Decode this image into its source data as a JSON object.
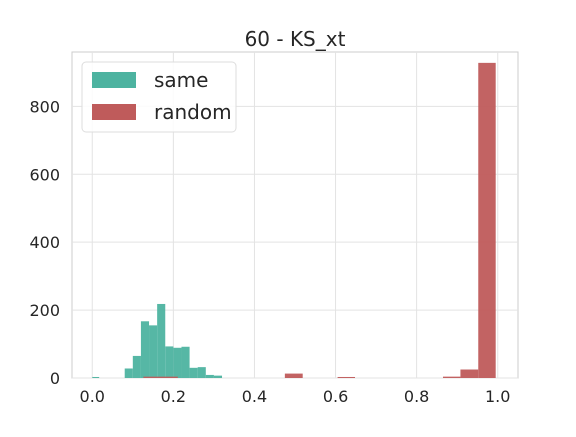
{
  "chart_data": {
    "type": "bar",
    "title": "60 - KS_xt",
    "xlabel": "",
    "ylabel": "",
    "xlim": [
      -0.05,
      1.05
    ],
    "ylim": [
      0,
      960
    ],
    "xticks": [
      0.0,
      0.2,
      0.4,
      0.6,
      0.8,
      1.0
    ],
    "xtick_labels": [
      "0.0",
      "0.2",
      "0.4",
      "0.6",
      "0.8",
      "1.0"
    ],
    "yticks": [
      0,
      200,
      400,
      600,
      800
    ],
    "ytick_labels": [
      "0",
      "200",
      "400",
      "600",
      "800"
    ],
    "grid": true,
    "legend_position": "top-left",
    "series": [
      {
        "name": "same",
        "color": "#4db3a0",
        "bins": [
          {
            "x0": 0.0,
            "x1": 0.017,
            "count": 3
          },
          {
            "x0": 0.08,
            "x1": 0.1,
            "count": 28
          },
          {
            "x0": 0.1,
            "x1": 0.12,
            "count": 65
          },
          {
            "x0": 0.12,
            "x1": 0.14,
            "count": 167
          },
          {
            "x0": 0.14,
            "x1": 0.16,
            "count": 155
          },
          {
            "x0": 0.16,
            "x1": 0.18,
            "count": 218
          },
          {
            "x0": 0.18,
            "x1": 0.2,
            "count": 93
          },
          {
            "x0": 0.2,
            "x1": 0.22,
            "count": 89
          },
          {
            "x0": 0.22,
            "x1": 0.24,
            "count": 92
          },
          {
            "x0": 0.24,
            "x1": 0.26,
            "count": 30
          },
          {
            "x0": 0.26,
            "x1": 0.28,
            "count": 32
          },
          {
            "x0": 0.28,
            "x1": 0.3,
            "count": 9
          },
          {
            "x0": 0.3,
            "x1": 0.32,
            "count": 7
          }
        ]
      },
      {
        "name": "random",
        "color": "#bf5b5b",
        "bins": [
          {
            "x0": 0.126,
            "x1": 0.211,
            "count": 4
          },
          {
            "x0": 0.475,
            "x1": 0.519,
            "count": 13
          },
          {
            "x0": 0.605,
            "x1": 0.648,
            "count": 3
          },
          {
            "x0": 0.865,
            "x1": 0.908,
            "count": 4
          },
          {
            "x0": 0.908,
            "x1": 0.952,
            "count": 25
          },
          {
            "x0": 0.952,
            "x1": 0.995,
            "count": 928
          }
        ]
      }
    ]
  }
}
